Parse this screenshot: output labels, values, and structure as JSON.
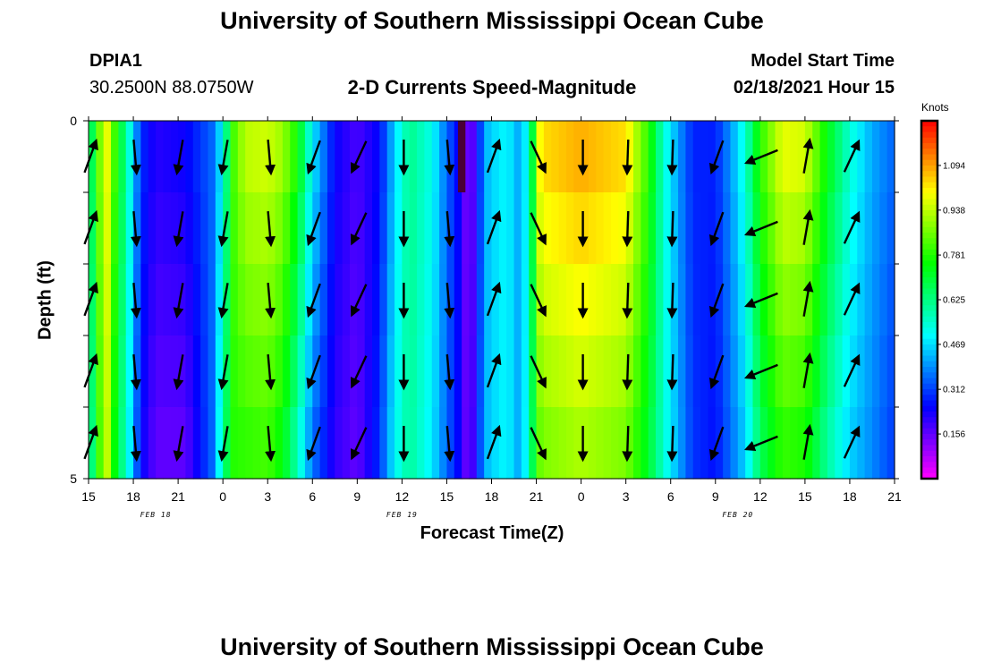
{
  "page": {
    "title_top": "University of Southern Mississippi Ocean Cube",
    "title_bottom": "University of Southern Mississippi Ocean Cube",
    "station_id": "DPIA1",
    "station_coords": "30.2500N 88.0750W",
    "model_start_label": "Model Start Time",
    "model_start_value": "02/18/2021 Hour 15"
  },
  "chart_data": {
    "type": "heatmap",
    "title": "2-D Currents Speed-Magnitude",
    "xlabel": "Forecast Time(Z)",
    "ylabel": "Depth (ft)",
    "x_hours_range": [
      0,
      54
    ],
    "y_depth_range": [
      0,
      5
    ],
    "y_tick_labels": [
      "0",
      "5"
    ],
    "x_tick_labels": [
      "15",
      "18",
      "21",
      "0",
      "3",
      "6",
      "9",
      "12",
      "15",
      "18",
      "21",
      "0",
      "3",
      "6",
      "9",
      "12",
      "15",
      "18",
      "21"
    ],
    "date_labels": [
      {
        "text": "FEB 18",
        "hour": 4.5
      },
      {
        "text": "FEB 19",
        "hour": 21
      },
      {
        "text": "FEB 20",
        "hour": 43.5
      }
    ],
    "colorbar": {
      "unit": "Knots",
      "min": 0.0,
      "max": 1.25,
      "tick_values": [
        0.156,
        0.312,
        0.469,
        0.625,
        0.781,
        0.938,
        1.094
      ],
      "tick_labels": [
        "0.156",
        "0.312",
        "0.469",
        "0.625",
        "0.781",
        "0.938",
        "1.094"
      ]
    },
    "speed_profile_by_hour": [
      {
        "t": 0,
        "surface": 0.55,
        "bottom": 0.5
      },
      {
        "t": 0.5,
        "surface": 0.8,
        "bottom": 0.75
      },
      {
        "t": 1.2,
        "surface": 1.0,
        "bottom": 0.95
      },
      {
        "t": 1.8,
        "surface": 0.8,
        "bottom": 0.72
      },
      {
        "t": 2.7,
        "surface": 0.55,
        "bottom": 0.5
      },
      {
        "t": 3.5,
        "surface": 0.3,
        "bottom": 0.25
      },
      {
        "t": 4.5,
        "surface": 0.22,
        "bottom": 0.15
      },
      {
        "t": 6.5,
        "surface": 0.25,
        "bottom": 0.15
      },
      {
        "t": 8.3,
        "surface": 0.35,
        "bottom": 0.35
      },
      {
        "t": 9.0,
        "surface": 0.5,
        "bottom": 0.6
      },
      {
        "t": 9.6,
        "surface": 0.8,
        "bottom": 0.78
      },
      {
        "t": 10.5,
        "surface": 0.95,
        "bottom": 0.78
      },
      {
        "t": 12.0,
        "surface": 0.97,
        "bottom": 0.8
      },
      {
        "t": 13.0,
        "surface": 0.92,
        "bottom": 0.72
      },
      {
        "t": 14.0,
        "surface": 0.78,
        "bottom": 0.55
      },
      {
        "t": 15.0,
        "surface": 0.5,
        "bottom": 0.35
      },
      {
        "t": 16.5,
        "surface": 0.25,
        "bottom": 0.2
      },
      {
        "t": 18.0,
        "surface": 0.18,
        "bottom": 0.15
      },
      {
        "t": 19.5,
        "surface": 0.25,
        "bottom": 0.3
      },
      {
        "t": 20.5,
        "surface": 0.45,
        "bottom": 0.5
      },
      {
        "t": 21.5,
        "surface": 0.62,
        "bottom": 0.6
      },
      {
        "t": 23.0,
        "surface": 0.52,
        "bottom": 0.48
      },
      {
        "t": 24.0,
        "surface": 0.35,
        "bottom": 0.35
      },
      {
        "t": 25.0,
        "surface": 0.22,
        "bottom": 0.22
      },
      {
        "t": 25.5,
        "surface": 0.08,
        "bottom": 0.1
      },
      {
        "t": 26.0,
        "surface": 0.25,
        "bottom": 0.28
      },
      {
        "t": 26.8,
        "surface": 0.45,
        "bottom": 0.45
      },
      {
        "t": 28.0,
        "surface": 0.5,
        "bottom": 0.5
      },
      {
        "t": 29.0,
        "surface": 0.4,
        "bottom": 0.4
      },
      {
        "t": 29.6,
        "surface": 0.6,
        "bottom": 0.62
      },
      {
        "t": 30.3,
        "surface": 1.05,
        "bottom": 0.85
      },
      {
        "t": 33.0,
        "surface": 1.1,
        "bottom": 0.9
      },
      {
        "t": 36.0,
        "surface": 1.05,
        "bottom": 0.85
      },
      {
        "t": 37.5,
        "surface": 0.8,
        "bottom": 0.7
      },
      {
        "t": 38.5,
        "surface": 0.55,
        "bottom": 0.55
      },
      {
        "t": 39.5,
        "surface": 0.4,
        "bottom": 0.42
      },
      {
        "t": 40.5,
        "surface": 0.28,
        "bottom": 0.3
      },
      {
        "t": 42.0,
        "surface": 0.28,
        "bottom": 0.26
      },
      {
        "t": 43.0,
        "surface": 0.4,
        "bottom": 0.35
      },
      {
        "t": 44.0,
        "surface": 0.55,
        "bottom": 0.45
      },
      {
        "t": 45.0,
        "surface": 0.8,
        "bottom": 0.65
      },
      {
        "t": 46.5,
        "surface": 1.0,
        "bottom": 0.78
      },
      {
        "t": 48.0,
        "surface": 0.98,
        "bottom": 0.75
      },
      {
        "t": 49.5,
        "surface": 0.75,
        "bottom": 0.58
      },
      {
        "t": 51.0,
        "surface": 0.55,
        "bottom": 0.45
      },
      {
        "t": 52.5,
        "surface": 0.42,
        "bottom": 0.38
      },
      {
        "t": 54.0,
        "surface": 0.35,
        "bottom": 0.3
      }
    ],
    "vector_hours": [
      0,
      3,
      6,
      9,
      12,
      15,
      18,
      21,
      24,
      27,
      30,
      33,
      36,
      39,
      42,
      45,
      48,
      51
    ],
    "vector_depths_ft": [
      0.5,
      1.5,
      2.5,
      3.5,
      4.5
    ],
    "vector_direction_deg": [
      20,
      175,
      190,
      190,
      175,
      200,
      205,
      180,
      175,
      20,
      155,
      180,
      182,
      182,
      200,
      248,
      10,
      25
    ]
  }
}
